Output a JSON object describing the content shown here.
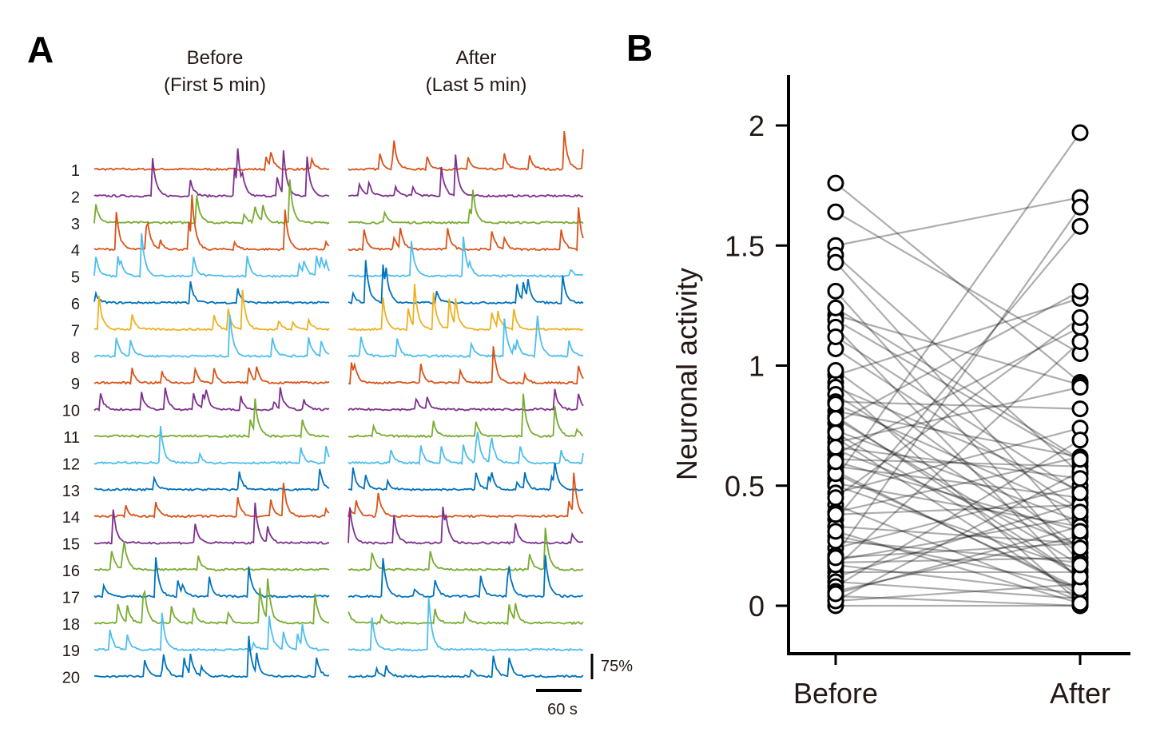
{
  "panel_a": {
    "letter": "A",
    "before_title_line1": "Before",
    "before_title_line2": "(First 5 min)",
    "after_title_line1": "After",
    "after_title_line2": "(Last 5 min)",
    "trace_labels": [
      "1",
      "2",
      "3",
      "4",
      "5",
      "6",
      "7",
      "8",
      "9",
      "10",
      "11",
      "12",
      "13",
      "14",
      "15",
      "16",
      "17",
      "18",
      "19",
      "20"
    ],
    "trace_colors": [
      "#d95319",
      "#7e2f8e",
      "#77ac30",
      "#d95319",
      "#4dbeee",
      "#0072bd",
      "#edb120",
      "#4dbeee",
      "#d95319",
      "#7e2f8e",
      "#77ac30",
      "#4dbeee",
      "#0072bd",
      "#d95319",
      "#7e2f8e",
      "#77ac30",
      "#0072bd",
      "#77ac30",
      "#4dbeee",
      "#0072bd"
    ],
    "scale_y_label": "75%",
    "scale_x_label": "60 s"
  },
  "panel_b": {
    "letter": "B"
  },
  "chart_data": [
    {
      "type": "line",
      "panel": "A",
      "description_series": "calcium traces per neuron (20 neurons), before vs after",
      "groups": [
        "Before\n(First 5 min)",
        "After\n(Last 5 min)"
      ],
      "series_labels": [
        "1",
        "2",
        "3",
        "4",
        "5",
        "6",
        "7",
        "8",
        "9",
        "10",
        "11",
        "12",
        "13",
        "14",
        "15",
        "16",
        "17",
        "18",
        "19",
        "20"
      ],
      "scale_bar": {
        "y": "75%",
        "x": "60 s"
      }
    },
    {
      "type": "scatter",
      "panel": "B",
      "categories": [
        "Before",
        "After"
      ],
      "xlabel": "",
      "ylabel": "Neuronal activity",
      "ylim": [
        -0.2,
        2.2
      ],
      "yticks": [
        0,
        0.5,
        1,
        1.5,
        2
      ],
      "ytick_labels": [
        "0",
        "0.5",
        "1",
        "1.5",
        "2"
      ],
      "grid": false,
      "pairs": [
        [
          1.76,
          0.93
        ],
        [
          1.64,
          1.05
        ],
        [
          1.5,
          1.7
        ],
        [
          1.46,
          0.55
        ],
        [
          1.43,
          0.3
        ],
        [
          1.31,
          0.18
        ],
        [
          1.21,
          0.92
        ],
        [
          1.19,
          0.6
        ],
        [
          1.16,
          0.1
        ],
        [
          1.07,
          0.4
        ],
        [
          0.96,
          1.28
        ],
        [
          0.93,
          0.01
        ],
        [
          0.91,
          0.48
        ],
        [
          0.88,
          0.22
        ],
        [
          0.85,
          0.82
        ],
        [
          0.81,
          0.62
        ],
        [
          0.79,
          0.12
        ],
        [
          0.76,
          1.31
        ],
        [
          0.73,
          0.35
        ],
        [
          0.7,
          0.04
        ],
        [
          0.68,
          0.91
        ],
        [
          0.65,
          0.25
        ],
        [
          0.63,
          1.16
        ],
        [
          0.61,
          0.58
        ],
        [
          0.58,
          0.45
        ],
        [
          0.56,
          0.06
        ],
        [
          0.53,
          1.97
        ],
        [
          0.51,
          0.33
        ],
        [
          0.5,
          0.15
        ],
        [
          0.47,
          0.74
        ],
        [
          0.42,
          0.02
        ],
        [
          0.39,
          0.62
        ],
        [
          0.36,
          1.58
        ],
        [
          0.33,
          0.26
        ],
        [
          0.29,
          0.08
        ],
        [
          0.24,
          0.5
        ],
        [
          0.21,
          1.66
        ],
        [
          0.19,
          0.37
        ],
        [
          0.18,
          0.2
        ],
        [
          0.16,
          1.1
        ],
        [
          0.14,
          0.14
        ],
        [
          0.12,
          0.43
        ],
        [
          0.1,
          0.03
        ],
        [
          0.08,
          0.69
        ],
        [
          0.06,
          0.29
        ],
        [
          0.04,
          0.0
        ],
        [
          0.02,
          0.56
        ],
        [
          0.0,
          0.0
        ],
        [
          0.02,
          0.09
        ],
        [
          0.05,
          0.33
        ],
        [
          0.17,
          0.05
        ],
        [
          0.2,
          0.26
        ],
        [
          0.27,
          0.18
        ],
        [
          0.31,
          0.01
        ],
        [
          0.38,
          0.42
        ],
        [
          0.45,
          1.2
        ],
        [
          0.55,
          0.07
        ],
        [
          0.6,
          0.31
        ],
        [
          0.66,
          0.53
        ],
        [
          0.72,
          0.12
        ],
        [
          0.78,
          0.17
        ],
        [
          0.84,
          0.39
        ],
        [
          0.98,
          0.24
        ],
        [
          1.12,
          0.47
        ],
        [
          1.24,
          0.61
        ]
      ]
    }
  ]
}
